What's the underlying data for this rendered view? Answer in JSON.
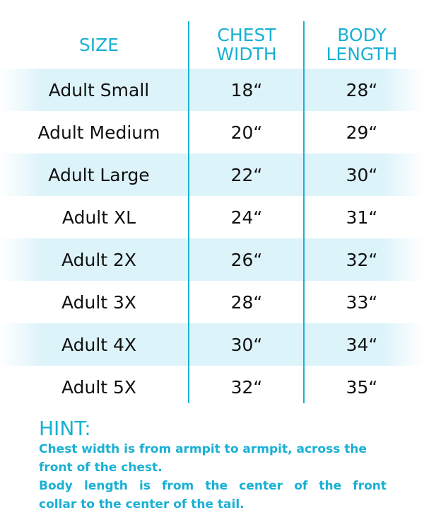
{
  "headers": [
    "SIZE",
    "CHEST\nWIDTH",
    "BODY\nLENGTH"
  ],
  "rows": [
    [
      "Adult Small",
      "18“",
      "28“"
    ],
    [
      "Adult Medium",
      "20“",
      "29“"
    ],
    [
      "Adult Large",
      "22“",
      "30“"
    ],
    [
      "Adult XL",
      "24“",
      "31“"
    ],
    [
      "Adult 2X",
      "26“",
      "32“"
    ],
    [
      "Adult 3X",
      "28“",
      "33“"
    ],
    [
      "Adult 4X",
      "30“",
      "34“"
    ],
    [
      "Adult 5X",
      "32“",
      "35“"
    ]
  ],
  "hint": {
    "title": "HINT:",
    "lines": [
      "Chest width is from armpit to armpit, across the",
      "front of the chest.",
      "Body length is from the center of the front",
      "collar to the center of the tail."
    ]
  },
  "colors": {
    "accent": "#19b0d4",
    "row_shade": "#dcf3fa",
    "text": "#111111"
  }
}
